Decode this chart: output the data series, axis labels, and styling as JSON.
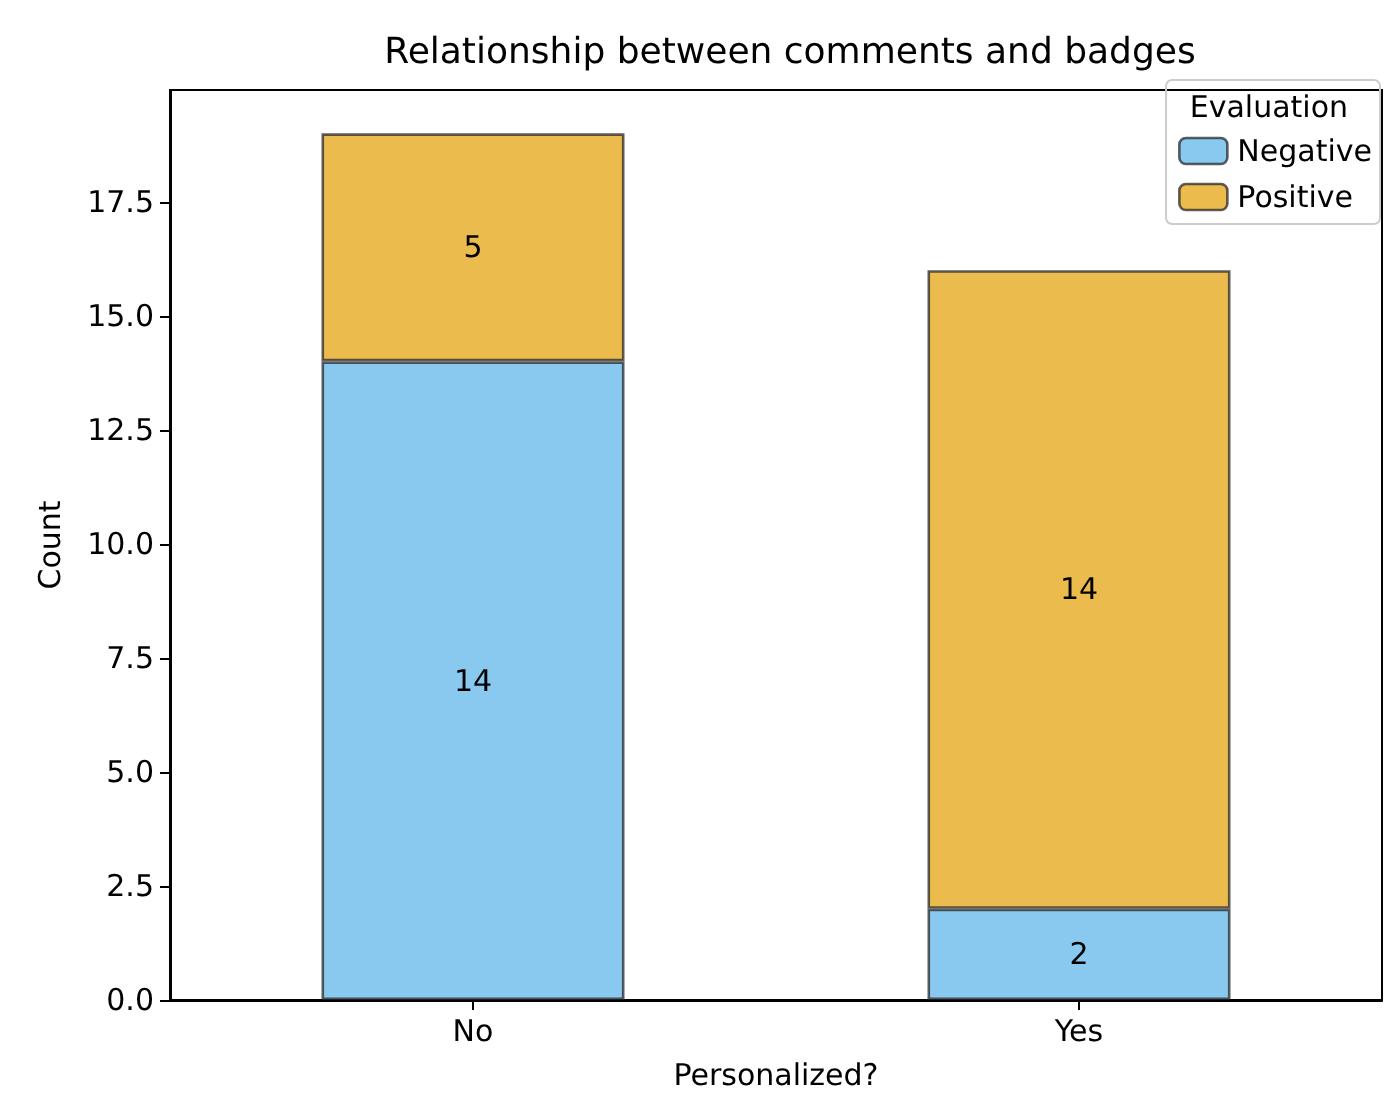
{
  "chart_data": {
    "type": "bar",
    "title": "Relationship between comments and badges",
    "xlabel": "Personalized?",
    "ylabel": "Count",
    "legend_title": "Evaluation",
    "categories": [
      "No",
      "Yes"
    ],
    "stacked": true,
    "series": [
      {
        "name": "Negative",
        "color": "#89c9ef",
        "values": [
          14,
          2
        ]
      },
      {
        "name": "Positive",
        "color": "#ecbb4d",
        "values": [
          5,
          14
        ]
      }
    ],
    "ylim": [
      0,
      19.95
    ],
    "yticks": [
      {
        "value": 0,
        "label": "0.0"
      },
      {
        "value": 2.5,
        "label": "2.5"
      },
      {
        "value": 5,
        "label": "5.0"
      },
      {
        "value": 7.5,
        "label": "7.5"
      },
      {
        "value": 10,
        "label": "10.0"
      },
      {
        "value": 12.5,
        "label": "12.5"
      },
      {
        "value": 15,
        "label": "15.0"
      },
      {
        "value": 17.5,
        "label": "17.5"
      }
    ],
    "data_labels": true,
    "legend": "top right",
    "grid": false
  }
}
